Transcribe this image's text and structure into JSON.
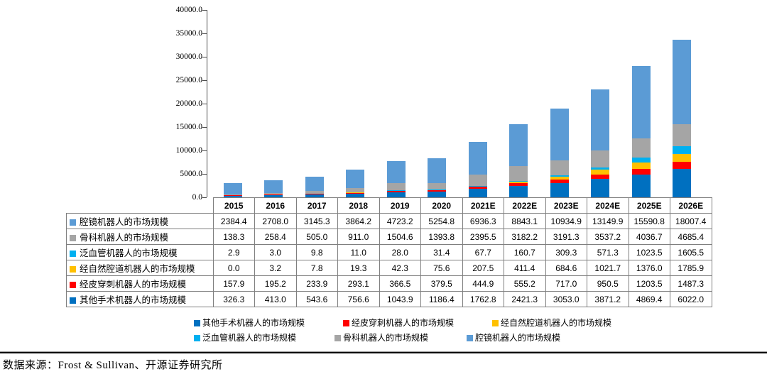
{
  "chart_data": {
    "type": "bar",
    "stacked": true,
    "title": "",
    "xlabel": "",
    "ylabel": "",
    "categories": [
      "2015",
      "2016",
      "2017",
      "2018",
      "2019",
      "2020",
      "2021E",
      "2022E",
      "2023E",
      "2024E",
      "2025E",
      "2026E"
    ],
    "series": [
      {
        "name": "其他手术机器人的市场规模",
        "color": "#0070C0",
        "values": [
          326.3,
          413.0,
          543.6,
          756.6,
          1043.9,
          1186.4,
          1762.8,
          2421.3,
          3053.0,
          3871.2,
          4869.4,
          6022.0
        ]
      },
      {
        "name": "经皮穿刺机器人的市场规模",
        "color": "#FF0000",
        "values": [
          157.9,
          195.2,
          233.9,
          293.1,
          366.5,
          379.5,
          444.9,
          555.2,
          717.0,
          950.5,
          1203.5,
          1487.3
        ]
      },
      {
        "name": "经自然腔道机器人的市场规模",
        "color": "#FFC000",
        "values": [
          0.0,
          3.2,
          7.8,
          19.3,
          42.3,
          75.6,
          207.5,
          411.4,
          684.6,
          1021.7,
          1376.0,
          1785.9
        ]
      },
      {
        "name": "泛血管机器人的市场规模",
        "color": "#00B0F0",
        "values": [
          2.9,
          3.0,
          9.8,
          11.0,
          28.0,
          31.4,
          67.7,
          160.7,
          309.3,
          571.3,
          1023.5,
          1605.5
        ]
      },
      {
        "name": "骨科机器人的市场规模",
        "color": "#A5A5A5",
        "values": [
          138.3,
          258.4,
          505.0,
          911.0,
          1504.6,
          1393.8,
          2395.5,
          3182.2,
          3191.3,
          3537.2,
          4036.7,
          4685.4
        ]
      },
      {
        "name": "腔镜机器人的市场规模",
        "color": "#5B9BD5",
        "values": [
          2384.4,
          2708.0,
          3145.3,
          3864.2,
          4723.2,
          5254.8,
          6936.3,
          8843.1,
          10934.9,
          13149.9,
          15590.8,
          18007.4
        ]
      }
    ],
    "stack_order": "series listed bottom to top",
    "table_row_order_top_to_bottom": [
      "腔镜机器人的市场规模",
      "骨科机器人的市场规模",
      "泛血管机器人的市场规模",
      "经自然腔道机器人的市场规模",
      "经皮穿刺机器人的市场规模",
      "其他手术机器人的市场规模"
    ],
    "legend_rows": [
      [
        "其他手术机器人的市场规模",
        "经皮穿刺机器人的市场规模",
        "经自然腔道机器人的市场规模"
      ],
      [
        "泛血管机器人的市场规模",
        "骨科机器人的市场规模",
        "腔镜机器人的市场规模"
      ]
    ],
    "ylim": [
      0,
      40000
    ],
    "ytick_step": 5000,
    "ytick_decimals": 1,
    "value_decimals": 1,
    "grid": false,
    "legend_position": "bottom"
  },
  "footer": {
    "source": "数据来源：Frost & Sullivan、开源证券研究所"
  }
}
